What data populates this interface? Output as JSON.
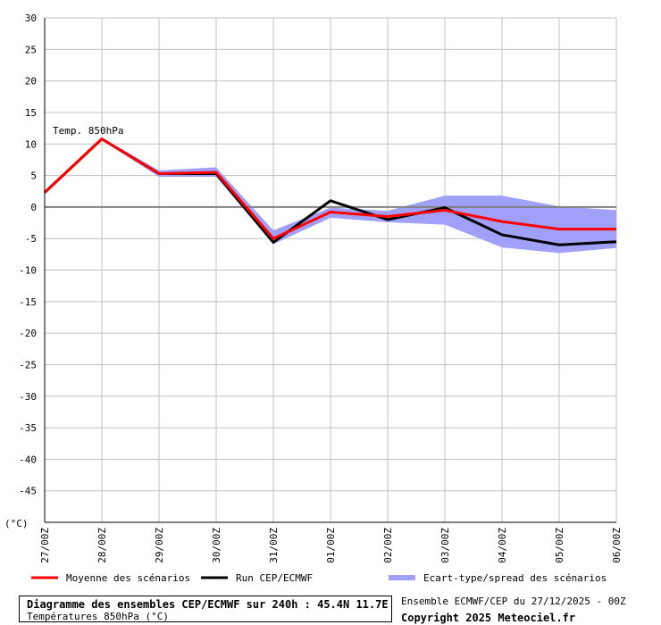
{
  "chart_data": {
    "type": "line",
    "x": [
      "27/00Z",
      "28/00Z",
      "29/00Z",
      "30/00Z",
      "31/00Z",
      "01/00Z",
      "02/00Z",
      "03/00Z",
      "04/00Z",
      "05/00Z",
      "06/00Z"
    ],
    "ylim": [
      -50,
      30
    ],
    "yticks": [
      30,
      25,
      20,
      15,
      10,
      5,
      0,
      -5,
      -10,
      -15,
      -20,
      -25,
      -30,
      -35,
      -40,
      -45
    ],
    "yunit": "(°C)",
    "grid": true,
    "annotation": "Temp. 850hPa",
    "series": [
      {
        "name": "Moyenne des scénarios",
        "color": "#ff0000",
        "values": [
          2.3,
          10.8,
          5.3,
          5.5,
          -5.0,
          -0.8,
          -1.5,
          -0.5,
          -2.3,
          -3.5,
          -3.5
        ]
      },
      {
        "name": "Run CEP/ECMWF",
        "color": "#000000",
        "values": [
          2.3,
          10.8,
          5.3,
          5.3,
          -5.6,
          1.0,
          -2.0,
          -0.1,
          -4.4,
          -6.0,
          -5.5
        ]
      },
      {
        "name": "Ecart-type/spread des scénarios",
        "color": "#a0a0f8",
        "kind": "band",
        "upper": [
          2.5,
          11.0,
          5.8,
          6.3,
          -3.7,
          -0.1,
          -0.6,
          1.8,
          1.8,
          0.1,
          -0.5
        ],
        "lower": [
          2.1,
          10.6,
          4.8,
          4.8,
          -5.9,
          -1.7,
          -2.4,
          -2.8,
          -6.4,
          -7.3,
          -6.5
        ]
      }
    ],
    "legend_position": "bottom"
  },
  "footer": {
    "title": "Diagramme des ensembles CEP/ECMWF sur 240h : 45.4N 11.7E",
    "subtitle": "Températures 850hPa (°C)",
    "run_info": "Ensemble ECMWF/CEP du 27/12/2025 - 00Z",
    "copyright": "Copyright 2025 Meteociel.fr"
  }
}
